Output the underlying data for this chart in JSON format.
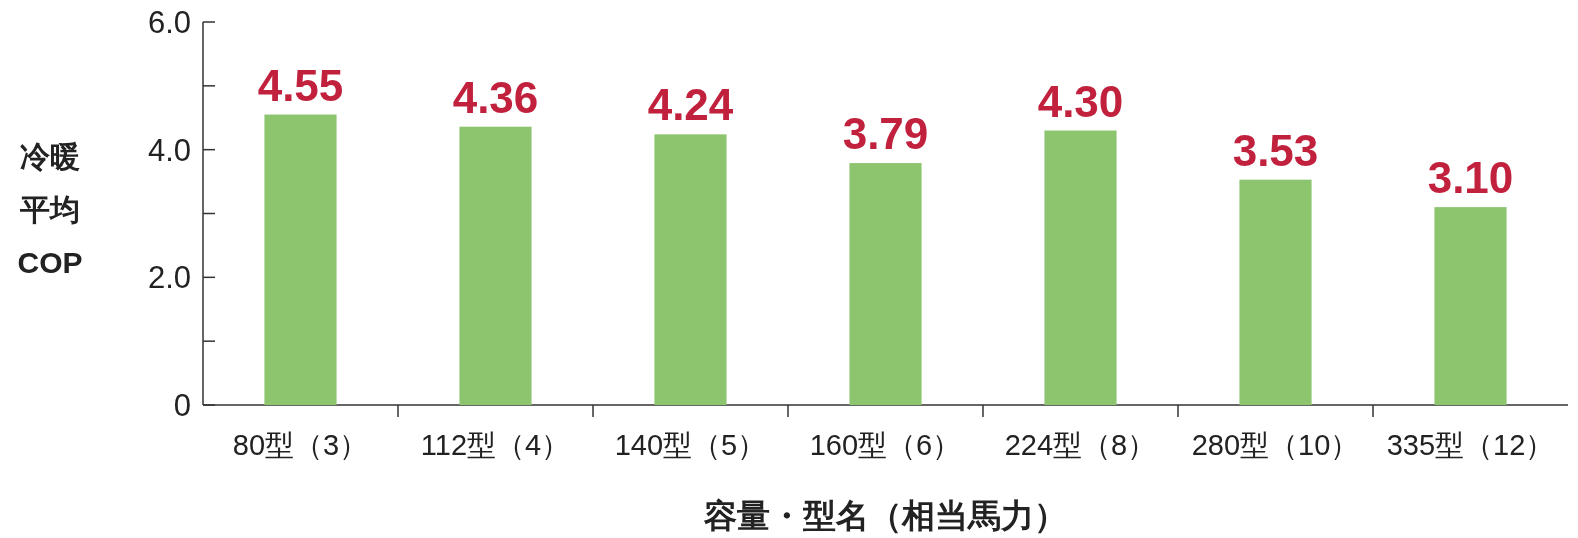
{
  "chart_data": {
    "type": "bar",
    "xlabel": "容量・型名（相当馬力）",
    "ylabel": "冷暖平均COP",
    "categories": [
      "80型（3）",
      "112型（4）",
      "140型（5）",
      "160型（6）",
      "224型（8）",
      "280型（10）",
      "335型（12）"
    ],
    "values": [
      4.55,
      4.36,
      4.24,
      3.79,
      4.3,
      3.53,
      3.1
    ],
    "value_labels": [
      "4.55",
      "4.36",
      "4.24",
      "3.79",
      "4.30",
      "3.53",
      "3.10"
    ],
    "color": "#8dc56f",
    "ylim": [
      0,
      6
    ],
    "yticks": [
      {
        "value": 0,
        "label": "0"
      },
      {
        "value": 1,
        "label": null
      },
      {
        "value": 2,
        "label": "2.0"
      },
      {
        "value": 3,
        "label": null
      },
      {
        "value": 4,
        "label": "4.0"
      },
      {
        "value": 5,
        "label": null
      },
      {
        "value": 6,
        "label": "6.0"
      }
    ]
  }
}
